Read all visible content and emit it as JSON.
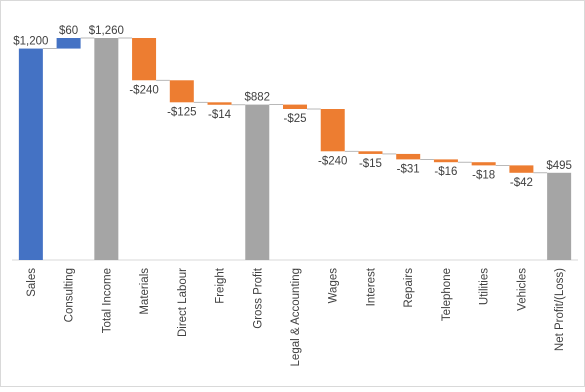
{
  "chart_data": {
    "type": "waterfall",
    "categories": [
      "Sales",
      "Consulting",
      "Total Income",
      "Materials",
      "Direct Labour",
      "Freight",
      "Gross Profit",
      "Legal & Accounting",
      "Wages",
      "Interest",
      "Repairs",
      "Telephone",
      "Utilities",
      "Vehicles",
      "Net Profit/(Loss)"
    ],
    "values": [
      1200,
      60,
      1260,
      -240,
      -125,
      -14,
      882,
      -25,
      -240,
      -15,
      -31,
      -16,
      -18,
      -42,
      495
    ],
    "value_labels": [
      "$1,200",
      "$60",
      "$1,260",
      "-$240",
      "-$125",
      "-$14",
      "$882",
      "-$25",
      "-$240",
      "-$15",
      "-$31",
      "-$16",
      "-$18",
      "-$42",
      "$495"
    ],
    "measure": [
      "relative",
      "relative",
      "total",
      "relative",
      "relative",
      "relative",
      "total",
      "relative",
      "relative",
      "relative",
      "relative",
      "relative",
      "relative",
      "relative",
      "total"
    ],
    "increase_color": "#4472c4",
    "decrease_color": "#ed7d31",
    "total_color": "#a5a5a5"
  }
}
